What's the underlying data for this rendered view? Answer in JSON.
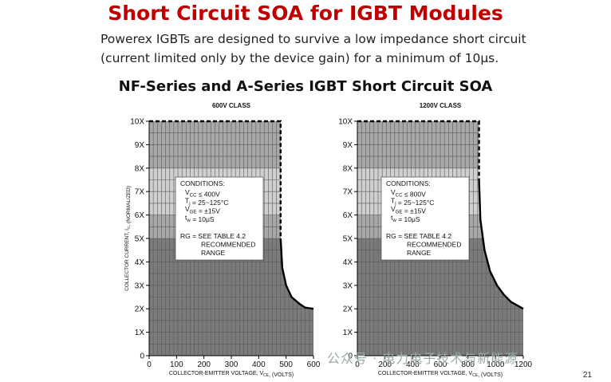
{
  "slide": {
    "title": "Short Circuit SOA for IGBT Modules",
    "intro_line1": "Powerex IGBTs are designed to survive a low impedance short circuit",
    "intro_line2": "(current limited only by the device gain) for a minimum of 10μs.",
    "subtitle": "NF-Series and A-Series IGBT Short Circuit SOA",
    "page_number": "21",
    "watermark_text": "公众号 · 电力电子技术与新能源"
  },
  "colors": {
    "title": "#c00000",
    "band_dark": "#7b7b7b",
    "band_mid": "#a8a8a8",
    "band_light": "#cfcfcf",
    "soa_boundary": "#000000"
  },
  "chart_data": [
    {
      "type": "area",
      "title": "600V CLASS",
      "xlabel": "COLLECTOR-EMITTER VOLTAGE, V_CE, (VOLTS)",
      "ylabel": "COLLECTOR CURRENT, I_C, (NORMALIZED)",
      "xlim": [
        0,
        600
      ],
      "ylim": [
        0,
        10
      ],
      "x_ticks": [
        0,
        100,
        200,
        300,
        400,
        500,
        600
      ],
      "y_ticks": [
        "0",
        "1X",
        "2X",
        "3X",
        "4X",
        "5X",
        "6X",
        "7X",
        "8X",
        "9X",
        "10X"
      ],
      "grid": true,
      "shaded_bands": [
        {
          "from": 0,
          "to": 5,
          "shade": "dark"
        },
        {
          "from": 5,
          "to": 6,
          "shade": "mid"
        },
        {
          "from": 6,
          "to": 8,
          "shade": "light"
        },
        {
          "from": 8,
          "to": 10,
          "shade": "mid"
        }
      ],
      "soa_boundary": {
        "x": [
          0,
          480,
          480,
          486,
          500,
          520,
          550,
          570,
          600,
          600
        ],
        "y": [
          10,
          10,
          5,
          3.75,
          3.0,
          2.5,
          2.2,
          2.05,
          2.0,
          0
        ]
      },
      "conditions": {
        "heading": "CONDITIONS:",
        "lines": [
          "V_CC ≤ 400V",
          "T_j = 25~125°C",
          "V_GE = ±15V",
          "t_w = 10μS"
        ],
        "rg_note": [
          "RG = SEE TABLE 4.2",
          "RECOMMENDED",
          "RANGE"
        ]
      }
    },
    {
      "type": "area",
      "title": "1200V CLASS",
      "xlabel": "COLLECTOR-EMITTER VOLTAGE, V_CE, (VOLTS)",
      "ylabel": "",
      "xlim": [
        0,
        1200
      ],
      "ylim": [
        0,
        10
      ],
      "x_ticks": [
        0,
        200,
        400,
        600,
        800,
        1000,
        1200
      ],
      "y_ticks": [
        "0",
        "1X",
        "2X",
        "3X",
        "4X",
        "5X",
        "6X",
        "7X",
        "8X",
        "9X",
        "10X"
      ],
      "grid": true,
      "shaded_bands": [
        {
          "from": 0,
          "to": 5,
          "shade": "dark"
        },
        {
          "from": 5,
          "to": 6,
          "shade": "mid"
        },
        {
          "from": 6,
          "to": 8,
          "shade": "light"
        },
        {
          "from": 8,
          "to": 10,
          "shade": "mid"
        }
      ],
      "soa_boundary": {
        "x": [
          0,
          880,
          880,
          890,
          920,
          960,
          1010,
          1060,
          1110,
          1200,
          1200
        ],
        "y": [
          10,
          10,
          7.5,
          5.8,
          4.5,
          3.6,
          3.0,
          2.6,
          2.3,
          2.0,
          0
        ]
      },
      "conditions": {
        "heading": "CONDITIONS:",
        "lines": [
          "V_CC ≤ 800V",
          "T_j = 25~125°C",
          "V_GE = ±15V",
          "t_w = 10μS"
        ],
        "rg_note": [
          "RG = SEE TABLE 4.2",
          "RECOMMENDED",
          "RANGE"
        ]
      }
    }
  ]
}
